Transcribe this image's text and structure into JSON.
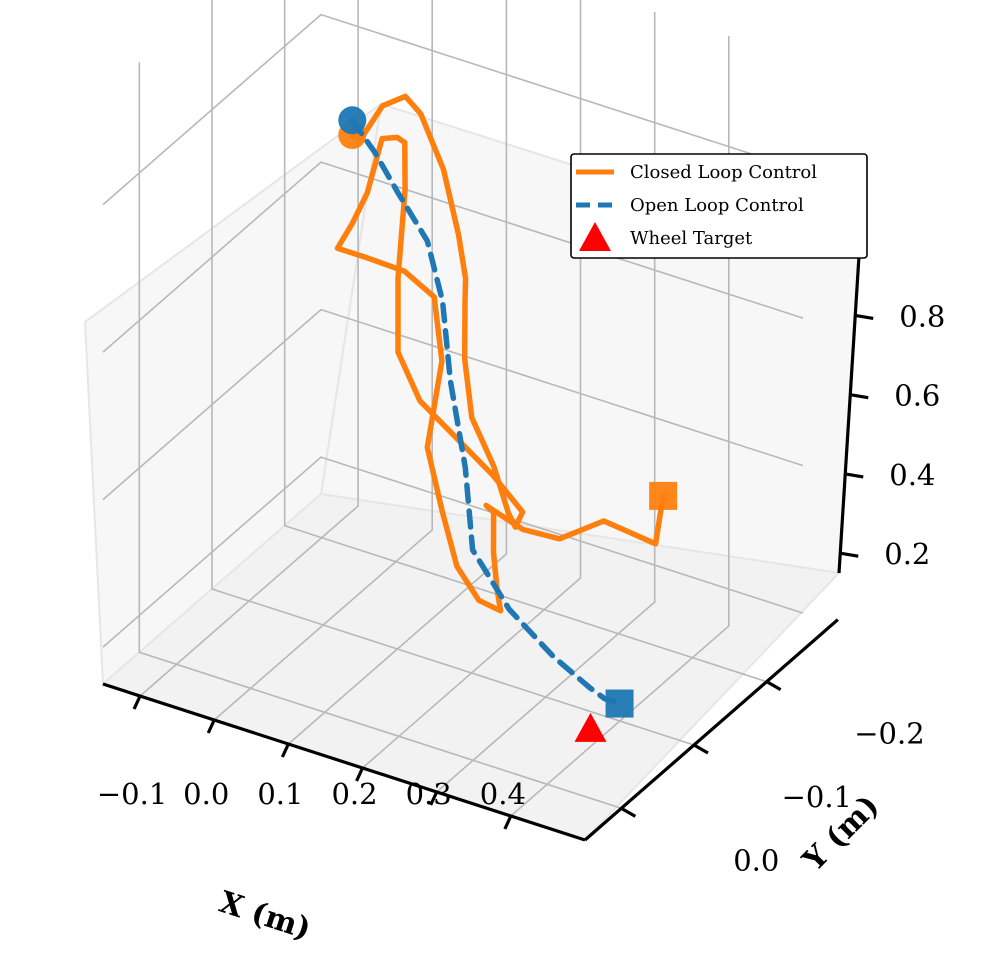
{
  "chart_data": {
    "type": "line",
    "projection": "3d",
    "xlabel": "X (m)",
    "ylabel": "Y (m)",
    "zlabel": "",
    "xlim": [
      -0.15,
      0.5
    ],
    "ylim": [
      -0.25,
      0.05
    ],
    "zlim": [
      0.15,
      0.95
    ],
    "xticks": [
      "−0.1",
      "0.0",
      "0.1",
      "0.2",
      "0.3",
      "0.4"
    ],
    "yticks": [
      "−0.2",
      "−0.1",
      "0.0"
    ],
    "zticks": [
      "0.2",
      "0.4",
      "0.6",
      "0.8"
    ],
    "grid": true,
    "legend_position": "top-right",
    "series": [
      {
        "name": "Closed Loop Control",
        "color": "#ff7f0e",
        "style": "solid",
        "start_marker": "circle",
        "end_marker": "square",
        "points": [
          [
            0.0,
            -0.14,
            0.78
          ],
          [
            0.03,
            -0.12,
            0.8
          ],
          [
            0.08,
            -0.1,
            0.88
          ],
          [
            0.15,
            -0.06,
            0.95
          ],
          [
            0.21,
            -0.02,
            0.98
          ],
          [
            0.27,
            0.01,
            0.95
          ],
          [
            0.3,
            0.02,
            0.88
          ],
          [
            0.29,
            0.0,
            0.8
          ],
          [
            0.25,
            -0.04,
            0.72
          ],
          [
            0.23,
            -0.06,
            0.62
          ],
          [
            0.22,
            -0.08,
            0.52
          ],
          [
            0.23,
            -0.1,
            0.44
          ],
          [
            0.23,
            -0.12,
            0.36
          ],
          [
            0.22,
            -0.14,
            0.32
          ],
          [
            0.21,
            -0.16,
            0.32
          ],
          [
            0.19,
            -0.14,
            0.38
          ],
          [
            0.17,
            -0.11,
            0.45
          ],
          [
            0.15,
            -0.08,
            0.52
          ],
          [
            0.14,
            -0.06,
            0.6
          ],
          [
            0.14,
            -0.06,
            0.7
          ],
          [
            0.13,
            -0.08,
            0.8
          ],
          [
            0.11,
            -0.1,
            0.84
          ],
          [
            0.08,
            -0.12,
            0.82
          ],
          [
            0.05,
            -0.13,
            0.8
          ],
          [
            0.03,
            -0.13,
            0.72
          ],
          [
            0.0,
            -0.14,
            0.66
          ],
          [
            -0.02,
            -0.14,
            0.62
          ],
          [
            0.02,
            -0.14,
            0.62
          ],
          [
            0.08,
            -0.13,
            0.63
          ],
          [
            0.13,
            -0.12,
            0.62
          ],
          [
            0.16,
            -0.1,
            0.56
          ],
          [
            0.16,
            -0.08,
            0.46
          ],
          [
            0.18,
            -0.08,
            0.38
          ],
          [
            0.19,
            -0.09,
            0.3
          ],
          [
            0.2,
            -0.11,
            0.24
          ],
          [
            0.2,
            -0.14,
            0.2
          ],
          [
            0.205,
            -0.13,
            0.24
          ],
          [
            0.21,
            -0.12,
            0.3
          ],
          [
            0.215,
            -0.115,
            0.36
          ],
          [
            0.2,
            -0.12,
            0.36
          ],
          [
            0.23,
            -0.14,
            0.32
          ],
          [
            0.26,
            -0.16,
            0.3
          ],
          [
            0.3,
            -0.18,
            0.32
          ],
          [
            0.36,
            -0.19,
            0.3
          ],
          [
            0.38,
            -0.18,
            0.38
          ]
        ]
      },
      {
        "name": "Open Loop Control",
        "color": "#1f77b4",
        "style": "dashed",
        "start_marker": "circle",
        "end_marker": "square",
        "points": [
          [
            0.0,
            -0.14,
            0.8
          ],
          [
            0.05,
            -0.12,
            0.79
          ],
          [
            0.1,
            -0.1,
            0.77
          ],
          [
            0.16,
            -0.08,
            0.74
          ],
          [
            0.21,
            -0.05,
            0.7
          ],
          [
            0.24,
            -0.03,
            0.62
          ],
          [
            0.27,
            -0.02,
            0.52
          ],
          [
            0.27,
            -0.03,
            0.4
          ],
          [
            0.29,
            -0.06,
            0.3
          ],
          [
            0.32,
            -0.09,
            0.22
          ],
          [
            0.35,
            -0.11,
            0.17
          ],
          [
            0.36,
            -0.12,
            0.15
          ],
          [
            0.38,
            -0.12,
            0.15
          ]
        ]
      },
      {
        "name": "Wheel Target",
        "color": "#ff0000",
        "style": "marker",
        "marker": "triangle",
        "points": [
          [
            0.38,
            -0.08,
            0.15
          ]
        ]
      }
    ]
  }
}
